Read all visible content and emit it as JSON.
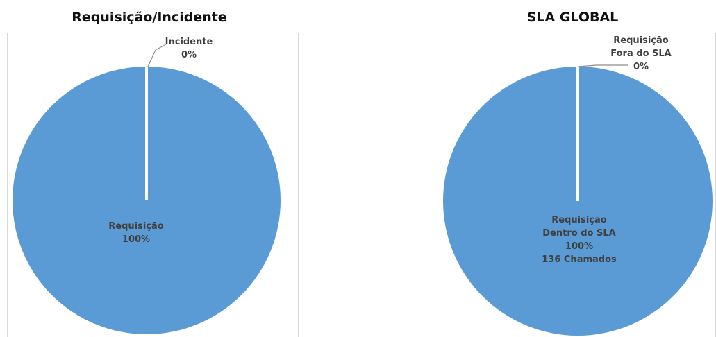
{
  "chart_data": [
    {
      "type": "pie",
      "title": "Requisição/Incidente",
      "slices": [
        {
          "label": "Requisição",
          "value": 100,
          "display": [
            "Requisição",
            "100%"
          ]
        },
        {
          "label": "Incidente",
          "value": 0,
          "display": [
            "Incidente",
            "0%"
          ]
        }
      ],
      "colors": {
        "slice": "#5b9bd5",
        "edge": "#ffffff",
        "leader": "#8c8c8c",
        "label": "#404040"
      },
      "start_angle_deg": 0,
      "direction": "clockwise",
      "border": "light gray frame"
    },
    {
      "type": "pie",
      "title": "SLA GLOBAL",
      "slices": [
        {
          "label": "Requisição Dentro do SLA",
          "value": 100,
          "count": 136,
          "display": [
            "Requisição",
            "Dentro do SLA",
            "100%",
            "136 Chamados"
          ]
        },
        {
          "label": "Requisição Fora do SLA",
          "value": 0,
          "display": [
            "Requisição",
            "Fora do SLA",
            "0%"
          ]
        }
      ],
      "colors": {
        "slice": "#5b9bd5",
        "edge": "#ffffff",
        "leader": "#8c8c8c",
        "label": "#404040"
      },
      "start_angle_deg": 0,
      "direction": "clockwise",
      "border": "light gray frame"
    }
  ]
}
